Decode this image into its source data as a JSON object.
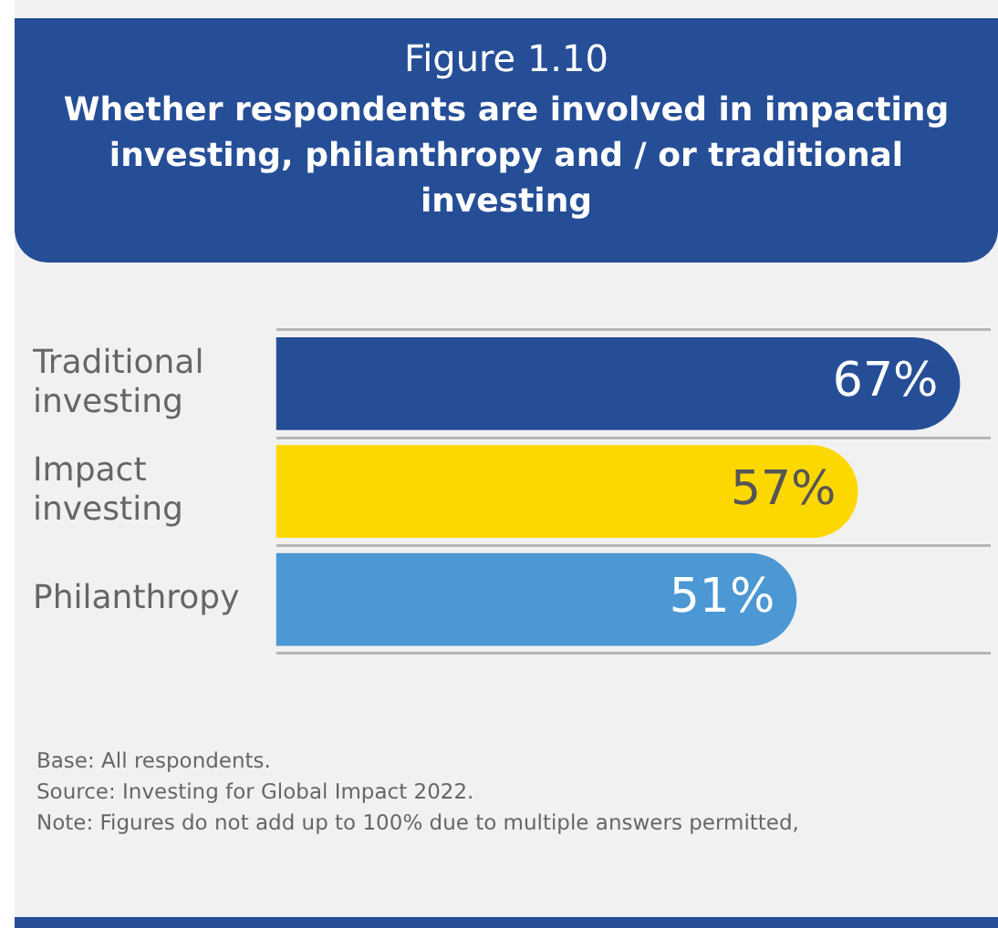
{
  "chart_data": {
    "type": "bar",
    "orientation": "horizontal",
    "title": "Figure 1.10",
    "subtitle": "Whether respondents are involved in impacting investing, philanthropy and / or traditional investing",
    "categories": [
      "Traditional investing",
      "Impact investing",
      "Philanthropy"
    ],
    "values": [
      67,
      57,
      51
    ],
    "colors": [
      "#254e97",
      "#fdd800",
      "#4b98d4"
    ],
    "value_labels": [
      "67%",
      "57%",
      "51%"
    ],
    "tick_labels": "y",
    "grid": "y",
    "legend": false,
    "annotations": [
      "Base: All respondents.",
      "Source: Investing for Global Impact 2022.",
      "Note: Figures do not add up to 100% due to multiple answers permitted,"
    ]
  }
}
